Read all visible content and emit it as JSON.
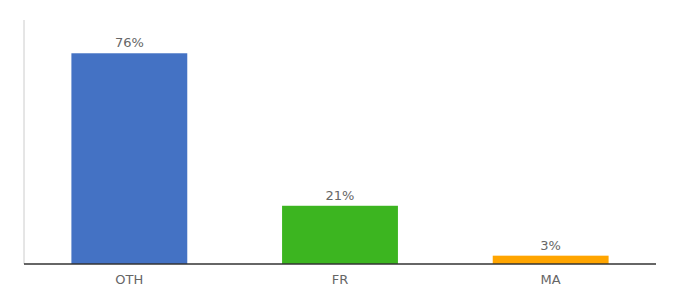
{
  "chart_data": {
    "type": "bar",
    "categories": [
      "OTH",
      "FR",
      "MA"
    ],
    "values": [
      76,
      21,
      3
    ],
    "value_labels": [
      "76%",
      "21%",
      "3%"
    ],
    "colors": [
      "#4472C4",
      "#3CB520",
      "#FFA500"
    ],
    "ylim": [
      0,
      88
    ],
    "data_labels": true,
    "tick_labels": "x",
    "grid": false
  }
}
